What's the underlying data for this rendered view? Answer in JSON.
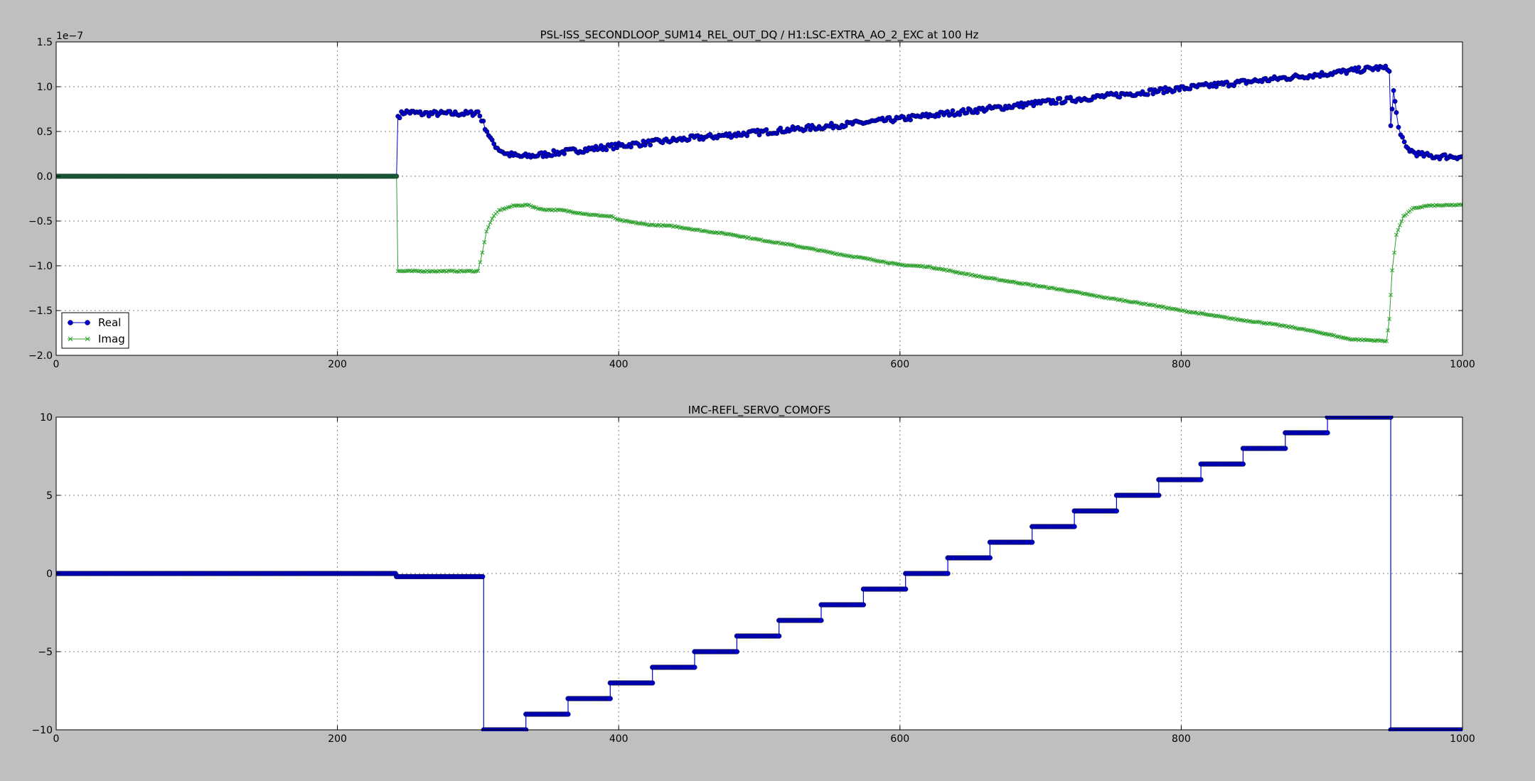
{
  "figure": {
    "background": "#bfbfbf",
    "axes_background": "#ffffff",
    "colors": {
      "real": "#0000cc",
      "imag": "#2ca02c",
      "step": "#0000cc"
    }
  },
  "chart_data": [
    {
      "type": "line",
      "title": "PSL-ISS_SECONDLOOP_SUM14_REL_OUT_DQ / H1:LSC-EXTRA_AO_2_EXC at 100 Hz",
      "xlabel": "",
      "ylabel": "",
      "offset_label": "1e−7",
      "xlim": [
        0,
        1000
      ],
      "ylim": [
        -2.0,
        1.5
      ],
      "grid": true,
      "legend_placement": "lower-left",
      "xticks": [
        0,
        200,
        400,
        600,
        800,
        1000
      ],
      "xtick_labels": [
        "0",
        "200",
        "400",
        "600",
        "800",
        "1000"
      ],
      "yticks": [
        -2.0,
        -1.5,
        -1.0,
        -0.5,
        0.0,
        0.5,
        1.0,
        1.5
      ],
      "ytick_labels": [
        "−2.0",
        "−1.5",
        "−1.0",
        "−0.5",
        "0.0",
        "0.5",
        "1.0",
        "1.5"
      ],
      "series": [
        {
          "name": "Real",
          "marker": "circle",
          "x": [
            0,
            242,
            243,
            248,
            260,
            280,
            295,
            300,
            305,
            310,
            315,
            320,
            330,
            340,
            360,
            400,
            450,
            500,
            550,
            600,
            650,
            700,
            750,
            800,
            850,
            900,
            940,
            948,
            949,
            951,
            953,
            956,
            960,
            965,
            970,
            980,
            1000
          ],
          "y": [
            0.0,
            0.0,
            0.67,
            0.72,
            0.7,
            0.7,
            0.7,
            0.72,
            0.55,
            0.38,
            0.3,
            0.25,
            0.22,
            0.23,
            0.27,
            0.34,
            0.42,
            0.49,
            0.56,
            0.64,
            0.73,
            0.82,
            0.9,
            0.98,
            1.06,
            1.14,
            1.21,
            1.2,
            0.55,
            0.95,
            0.7,
            0.45,
            0.32,
            0.27,
            0.24,
            0.22,
            0.22
          ]
        },
        {
          "name": "Imag",
          "marker": "x",
          "x": [
            0,
            242,
            243,
            270,
            300,
            303,
            306,
            310,
            315,
            325,
            335,
            345,
            360,
            380,
            395,
            400,
            420,
            440,
            460,
            480,
            500,
            520,
            540,
            560,
            580,
            600,
            620,
            640,
            660,
            680,
            700,
            720,
            740,
            760,
            780,
            800,
            820,
            840,
            860,
            880,
            900,
            920,
            946,
            948,
            950,
            953,
            958,
            965,
            975,
            1000
          ],
          "y": [
            0.0,
            0.0,
            -1.06,
            -1.06,
            -1.06,
            -0.85,
            -0.62,
            -0.47,
            -0.38,
            -0.33,
            -0.32,
            -0.37,
            -0.38,
            -0.43,
            -0.45,
            -0.49,
            -0.54,
            -0.56,
            -0.61,
            -0.65,
            -0.71,
            -0.76,
            -0.82,
            -0.88,
            -0.93,
            -0.99,
            -1.01,
            -1.07,
            -1.13,
            -1.18,
            -1.23,
            -1.28,
            -1.34,
            -1.39,
            -1.44,
            -1.5,
            -1.55,
            -1.6,
            -1.64,
            -1.69,
            -1.75,
            -1.82,
            -1.84,
            -1.6,
            -1.05,
            -0.65,
            -0.45,
            -0.36,
            -0.33,
            -0.32
          ]
        }
      ]
    },
    {
      "type": "line",
      "title": "IMC-REFL_SERVO_COMOFS",
      "xlabel": "",
      "ylabel": "",
      "xlim": [
        0,
        1000
      ],
      "ylim": [
        -10,
        10
      ],
      "grid": true,
      "xticks": [
        0,
        200,
        400,
        600,
        800,
        1000
      ],
      "xtick_labels": [
        "0",
        "200",
        "400",
        "600",
        "800",
        "1000"
      ],
      "yticks": [
        -10,
        -5,
        0,
        5,
        10
      ],
      "ytick_labels": [
        "−10",
        "−5",
        "0",
        "5",
        "10"
      ],
      "series": [
        {
          "marker": "circle",
          "steps": [
            {
              "x0": 0,
              "x1": 242,
              "y": 0
            },
            {
              "x0": 242,
              "x1": 304,
              "y": -0.2
            },
            {
              "x0": 304,
              "x1": 334,
              "y": -10
            },
            {
              "x0": 334,
              "x1": 364,
              "y": -9
            },
            {
              "x0": 364,
              "x1": 394,
              "y": -8
            },
            {
              "x0": 394,
              "x1": 424,
              "y": -7
            },
            {
              "x0": 424,
              "x1": 454,
              "y": -6
            },
            {
              "x0": 454,
              "x1": 484,
              "y": -5
            },
            {
              "x0": 484,
              "x1": 514,
              "y": -4
            },
            {
              "x0": 514,
              "x1": 544,
              "y": -3
            },
            {
              "x0": 544,
              "x1": 574,
              "y": -2
            },
            {
              "x0": 574,
              "x1": 604,
              "y": -1
            },
            {
              "x0": 604,
              "x1": 634,
              "y": 0
            },
            {
              "x0": 634,
              "x1": 664,
              "y": 1
            },
            {
              "x0": 664,
              "x1": 694,
              "y": 2
            },
            {
              "x0": 694,
              "x1": 724,
              "y": 3
            },
            {
              "x0": 724,
              "x1": 754,
              "y": 4
            },
            {
              "x0": 754,
              "x1": 784,
              "y": 5
            },
            {
              "x0": 784,
              "x1": 814,
              "y": 6
            },
            {
              "x0": 814,
              "x1": 844,
              "y": 7
            },
            {
              "x0": 844,
              "x1": 874,
              "y": 8
            },
            {
              "x0": 874,
              "x1": 904,
              "y": 9
            },
            {
              "x0": 904,
              "x1": 949,
              "y": 10
            },
            {
              "x0": 949,
              "x1": 1000,
              "y": -10
            }
          ]
        }
      ]
    }
  ]
}
